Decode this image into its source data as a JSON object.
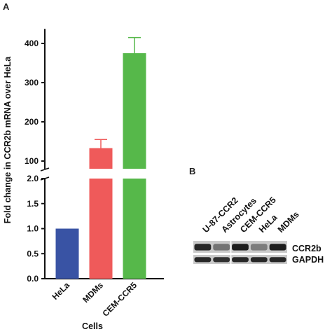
{
  "panels": {
    "a": "A",
    "b": "B"
  },
  "chart_data": {
    "type": "bar",
    "axis_break": true,
    "categories": [
      "HeLa",
      "MDMs",
      "CEM-CCR5"
    ],
    "values": [
      1.0,
      133,
      375
    ],
    "error_upper": [
      null,
      155,
      415
    ],
    "colors": [
      "#3953a4",
      "#ef5a5a",
      "#56b84a"
    ],
    "xlabel": "Cells",
    "ylabel": "Fold change in CCR2b mRNA over HeLa",
    "lower_segment": {
      "ylim": [
        0,
        2.0
      ],
      "ticks": [
        "0.0",
        "0.5",
        "1.0",
        "1.5",
        "2.0"
      ]
    },
    "upper_segment": {
      "ylim": [
        80,
        430
      ],
      "ticks": [
        "100",
        "200",
        "300",
        "400"
      ]
    }
  },
  "blot": {
    "lanes": [
      "U-87-CCR2",
      "Astrocytes",
      "CEM-CCR5",
      "HeLa",
      "MDMs"
    ],
    "bands": [
      {
        "label": "CCR2b",
        "intensity": [
          0.85,
          0.45,
          0.9,
          0.4,
          0.9
        ]
      },
      {
        "label": "GAPDH",
        "intensity": [
          0.85,
          0.8,
          0.85,
          0.85,
          0.85
        ]
      }
    ]
  }
}
